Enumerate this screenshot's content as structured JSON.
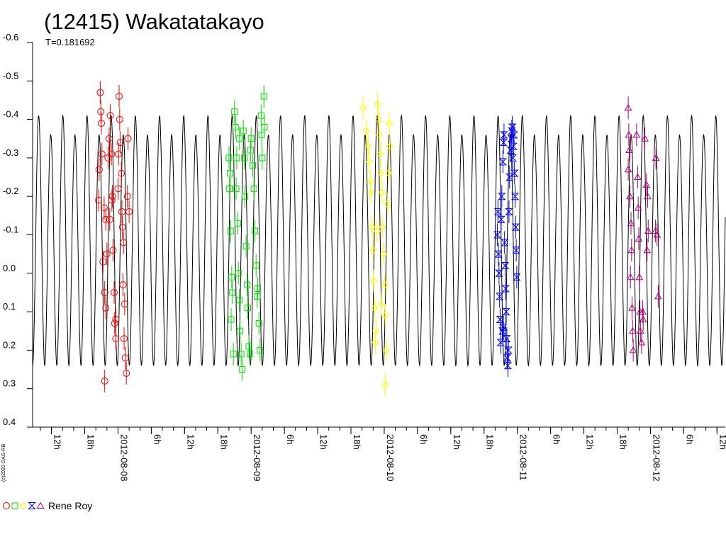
{
  "chart_data": {
    "type": "scatter",
    "title": "(12415) Wakatatakayo",
    "subtitle": "T=0.181692",
    "copyright": "(c)2020 OAG-RB",
    "observer_label": "Rene Roy",
    "ylim": [
      -0.6,
      0.4
    ],
    "y_inverted": true,
    "y_ticks": [
      "-0.6",
      "-0.5",
      "-0.4",
      "-0.3",
      "-0.2",
      "-0.1",
      "0.0",
      "0.1",
      "0.2",
      "0.3",
      "0.4"
    ],
    "x_unit": "hours since 2012-08-07 00:00",
    "xlim": [
      8.6,
      133.5
    ],
    "x_ticks": [
      {
        "t": 12,
        "label": "12h"
      },
      {
        "t": 18,
        "label": "18h"
      },
      {
        "t": 24,
        "label": "2012-08-08"
      },
      {
        "t": 30,
        "label": "6h"
      },
      {
        "t": 36,
        "label": "12h"
      },
      {
        "t": 42,
        "label": "18h"
      },
      {
        "t": 48,
        "label": "2012-08-09"
      },
      {
        "t": 54,
        "label": "6h"
      },
      {
        "t": 60,
        "label": "12h"
      },
      {
        "t": 66,
        "label": "18h"
      },
      {
        "t": 72,
        "label": "2012-08-10"
      },
      {
        "t": 78,
        "label": "6h"
      },
      {
        "t": 84,
        "label": "12h"
      },
      {
        "t": 90,
        "label": "18h"
      },
      {
        "t": 96,
        "label": "2012-08-11"
      },
      {
        "t": 102,
        "label": "6h"
      },
      {
        "t": 108,
        "label": "12h"
      },
      {
        "t": 114,
        "label": "18h"
      },
      {
        "t": 120,
        "label": "2012-08-12"
      },
      {
        "t": 126,
        "label": "6h"
      },
      {
        "t": 132,
        "label": "12h"
      }
    ],
    "model_curve": {
      "period_days": 0.181692,
      "min_mag": 0.24,
      "max_mag": -0.41,
      "secondary_max_mag": -0.36,
      "color": "#000000"
    },
    "series": [
      {
        "marker": "circle",
        "color": "#ff0000",
        "points": [
          [
            20.8,
            -0.47
          ],
          [
            20.9,
            -0.42
          ],
          [
            21.0,
            -0.39
          ],
          [
            21.1,
            -0.31
          ],
          [
            20.6,
            -0.27
          ],
          [
            20.5,
            -0.19
          ],
          [
            21.5,
            -0.17
          ],
          [
            21.8,
            -0.14
          ],
          [
            22.0,
            -0.05
          ],
          [
            21.6,
            0.05
          ],
          [
            21.8,
            0.09
          ],
          [
            21.6,
            0.28
          ],
          [
            22.6,
            -0.41
          ],
          [
            22.4,
            -0.35
          ],
          [
            22.8,
            -0.31
          ],
          [
            23.0,
            -0.2
          ],
          [
            23.1,
            -0.06
          ],
          [
            23.3,
            0.05
          ],
          [
            23.4,
            0.13
          ],
          [
            23.6,
            0.17
          ],
          [
            22.5,
            -0.14
          ],
          [
            22.9,
            -0.19
          ],
          [
            24.2,
            -0.46
          ],
          [
            24.3,
            -0.4
          ],
          [
            24.4,
            -0.34
          ],
          [
            24.1,
            -0.31
          ],
          [
            24.6,
            -0.26
          ],
          [
            24.0,
            -0.22
          ],
          [
            24.7,
            -0.16
          ],
          [
            24.8,
            -0.12
          ],
          [
            25.0,
            -0.08
          ],
          [
            24.9,
            0.03
          ],
          [
            25.2,
            0.08
          ],
          [
            25.1,
            0.17
          ],
          [
            25.3,
            0.22
          ],
          [
            25.5,
            0.26
          ],
          [
            25.8,
            -0.35
          ],
          [
            25.7,
            -0.2
          ],
          [
            26.0,
            -0.16
          ],
          [
            23.6,
            0.12
          ],
          [
            21.3,
            -0.03
          ],
          [
            22.2,
            -0.3
          ]
        ]
      },
      {
        "marker": "square",
        "color": "#00dd00",
        "points": [
          [
            44.0,
            -0.3
          ],
          [
            44.2,
            -0.26
          ],
          [
            44.1,
            -0.22
          ],
          [
            44.3,
            -0.11
          ],
          [
            44.5,
            0.01
          ],
          [
            44.6,
            0.05
          ],
          [
            44.4,
            0.12
          ],
          [
            44.8,
            0.21
          ],
          [
            45.0,
            -0.42
          ],
          [
            45.2,
            -0.38
          ],
          [
            45.4,
            -0.3
          ],
          [
            45.3,
            -0.22
          ],
          [
            45.6,
            -0.13
          ],
          [
            45.7,
            0.0
          ],
          [
            45.9,
            0.07
          ],
          [
            46.0,
            0.15
          ],
          [
            46.2,
            0.21
          ],
          [
            46.4,
            0.25
          ],
          [
            46.6,
            -0.37
          ],
          [
            46.8,
            -0.3
          ],
          [
            46.9,
            -0.2
          ],
          [
            47.1,
            -0.07
          ],
          [
            47.3,
            0.03
          ],
          [
            47.4,
            0.09
          ],
          [
            47.6,
            0.19
          ],
          [
            47.8,
            0.21
          ],
          [
            48.0,
            -0.35
          ],
          [
            48.3,
            -0.28
          ],
          [
            48.5,
            -0.22
          ],
          [
            48.7,
            -0.11
          ],
          [
            48.9,
            -0.02
          ],
          [
            49.1,
            0.06
          ],
          [
            49.4,
            0.13
          ],
          [
            49.6,
            0.2
          ],
          [
            49.8,
            -0.41
          ],
          [
            49.9,
            -0.36
          ],
          [
            50.0,
            -0.3
          ],
          [
            50.3,
            -0.46
          ],
          [
            50.4,
            -0.38
          ],
          [
            45.9,
            -0.35
          ],
          [
            47.9,
            -0.32
          ],
          [
            49.2,
            0.04
          ]
        ]
      },
      {
        "marker": "diamond",
        "color": "#ffff00",
        "points": [
          [
            68.2,
            -0.43
          ],
          [
            68.8,
            -0.37
          ],
          [
            69.1,
            -0.33
          ],
          [
            69.3,
            -0.29
          ],
          [
            69.5,
            -0.24
          ],
          [
            69.6,
            -0.21
          ],
          [
            69.8,
            -0.12
          ],
          [
            70.0,
            -0.06
          ],
          [
            70.1,
            0.02
          ],
          [
            70.3,
            0.09
          ],
          [
            70.5,
            0.15
          ],
          [
            70.4,
            0.18
          ],
          [
            70.8,
            -0.44
          ],
          [
            71.0,
            -0.4
          ],
          [
            71.1,
            -0.36
          ],
          [
            71.3,
            -0.31
          ],
          [
            71.4,
            -0.26
          ],
          [
            71.6,
            -0.21
          ],
          [
            71.7,
            -0.12
          ],
          [
            71.9,
            -0.05
          ],
          [
            72.1,
            0.03
          ],
          [
            72.2,
            0.11
          ],
          [
            72.4,
            0.2
          ],
          [
            72.2,
            0.29
          ],
          [
            72.9,
            -0.39
          ],
          [
            73.0,
            -0.33
          ],
          [
            72.8,
            -0.26
          ],
          [
            72.6,
            -0.18
          ],
          [
            70.7,
            -0.11
          ],
          [
            71.5,
            0.08
          ]
        ]
      },
      {
        "marker": "bowtie",
        "color": "#0000ff",
        "points": [
          [
            92.4,
            -0.1
          ],
          [
            92.6,
            -0.05
          ],
          [
            92.7,
            0.0
          ],
          [
            92.8,
            0.06
          ],
          [
            92.9,
            0.12
          ],
          [
            93.0,
            0.18
          ],
          [
            93.1,
            -0.14
          ],
          [
            93.2,
            -0.2
          ],
          [
            93.4,
            -0.29
          ],
          [
            93.5,
            -0.34
          ],
          [
            93.6,
            -0.36
          ],
          [
            93.3,
            0.15
          ],
          [
            94.2,
            0.22
          ],
          [
            94.3,
            0.24
          ],
          [
            94.1,
            0.17
          ],
          [
            94.0,
            0.1
          ],
          [
            93.9,
            0.04
          ],
          [
            93.8,
            -0.02
          ],
          [
            93.7,
            -0.08
          ],
          [
            94.5,
            -0.16
          ],
          [
            94.6,
            -0.25
          ],
          [
            94.8,
            -0.32
          ],
          [
            94.9,
            -0.35
          ],
          [
            95.0,
            -0.37
          ],
          [
            95.1,
            -0.38
          ],
          [
            95.3,
            -0.33
          ],
          [
            95.5,
            -0.26
          ],
          [
            95.6,
            -0.2
          ],
          [
            95.7,
            -0.12
          ],
          [
            95.8,
            -0.06
          ],
          [
            95.9,
            0.01
          ],
          [
            93.5,
            0.14
          ],
          [
            94.4,
            0.2
          ],
          [
            95.2,
            -0.3
          ],
          [
            95.4,
            -0.36
          ],
          [
            92.5,
            -0.16
          ]
        ]
      },
      {
        "marker": "triangle",
        "color": "#aa0077",
        "points": [
          [
            116.0,
            -0.43
          ],
          [
            116.1,
            -0.36
          ],
          [
            116.2,
            -0.32
          ],
          [
            116.0,
            -0.27
          ],
          [
            116.3,
            -0.2
          ],
          [
            116.5,
            -0.13
          ],
          [
            116.6,
            -0.06
          ],
          [
            116.4,
            0.01
          ],
          [
            116.7,
            0.09
          ],
          [
            116.8,
            0.15
          ],
          [
            116.9,
            0.2
          ],
          [
            117.5,
            -0.36
          ],
          [
            117.7,
            -0.25
          ],
          [
            117.8,
            -0.17
          ],
          [
            117.9,
            -0.09
          ],
          [
            118.0,
            0.01
          ],
          [
            118.1,
            0.1
          ],
          [
            118.2,
            0.15
          ],
          [
            119.0,
            -0.35
          ],
          [
            119.3,
            -0.23
          ],
          [
            119.5,
            -0.2
          ],
          [
            119.6,
            -0.11
          ],
          [
            119.4,
            -0.06
          ],
          [
            118.6,
            0.1
          ],
          [
            118.7,
            0.12
          ],
          [
            121.0,
            -0.3
          ],
          [
            120.9,
            -0.11
          ],
          [
            121.2,
            -0.1
          ],
          [
            121.4,
            0.06
          ],
          [
            118.4,
            0.18
          ]
        ]
      }
    ]
  }
}
